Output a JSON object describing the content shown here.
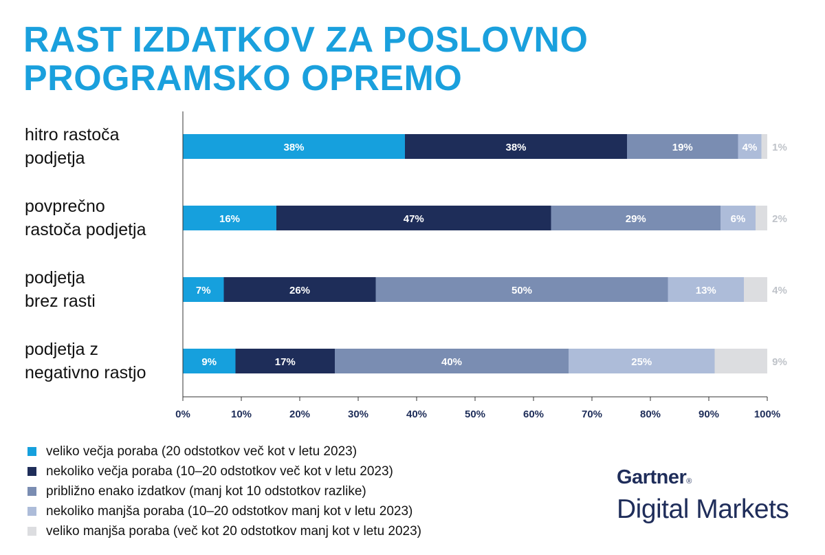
{
  "title": {
    "line1": "RAST IZDATKOV ZA POSLOVNO",
    "line2": "PROGRAMSKO OPREMO"
  },
  "chart_data": {
    "type": "bar",
    "orientation": "horizontal",
    "stacked": true,
    "categories": [
      "hitro rastoča podjetja",
      "povprečno rastoča podjetja",
      "podjetja brez rasti",
      "podjetja z negativno rastjo"
    ],
    "category_lines": [
      [
        "hitro rastoča",
        "podjetja"
      ],
      [
        "povprečno",
        "rastoča podjetja"
      ],
      [
        "podjetja",
        "brez rasti"
      ],
      [
        "podjetja z",
        "negativno rastjo"
      ]
    ],
    "series": [
      {
        "name": "veliko večja poraba (20 odstotkov več kot v letu 2023)",
        "color": "#16a0dd",
        "values": [
          38,
          16,
          7,
          9
        ]
      },
      {
        "name": "nekoliko večja poraba (10–20 odstotkov  več kot v letu 2023)",
        "color": "#1e2d59",
        "values": [
          38,
          47,
          26,
          17
        ]
      },
      {
        "name": "približno enako izdatkov (manj kot 10 odstotkov razlike)",
        "color": "#7a8db2",
        "values": [
          19,
          29,
          50,
          40
        ]
      },
      {
        "name": "nekoliko manjša poraba (10–20 odstotkov manj kot v letu 2023)",
        "color": "#adbcd9",
        "values": [
          4,
          6,
          13,
          25
        ]
      },
      {
        "name": "veliko manjša poraba (več kot 20 odstotkov manj kot v letu 2023)",
        "color": "#dcdde0",
        "values": [
          1,
          2,
          4,
          9
        ]
      }
    ],
    "x_ticks": [
      "0%",
      "10%",
      "20%",
      "30%",
      "40%",
      "50%",
      "60%",
      "70%",
      "80%",
      "90%",
      "100%"
    ],
    "xlim": [
      0,
      100
    ],
    "tick_color": "#1e2d59",
    "outside_label_color": "#bfc3c9",
    "grid": false,
    "legend_position": "bottom-left"
  },
  "brand": {
    "line1": "Gartner",
    "mark": "®",
    "line2": "Digital Markets"
  }
}
